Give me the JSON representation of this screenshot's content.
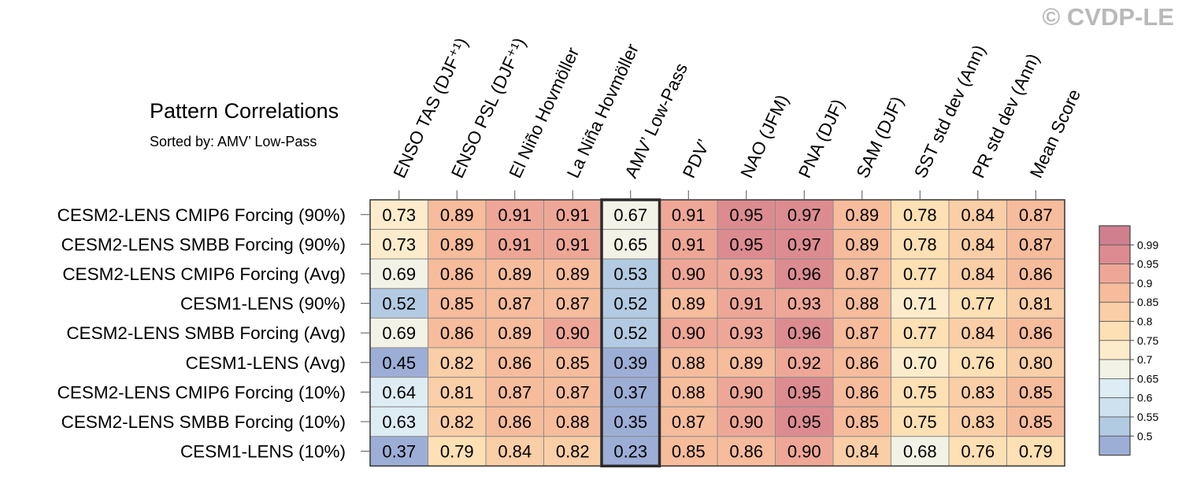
{
  "watermark": "© CVDP-LE",
  "chart_data": {
    "type": "heatmap",
    "title": "Pattern Correlations",
    "subtitle": "Sorted by: AMV’ Low-Pass",
    "columns": [
      "ENSO TAS (DJF⁺¹)",
      "ENSO PSL (DJF⁺¹)",
      "El Niño Hovmöller",
      "La Niña Hovmöller",
      "AMV’ Low-Pass",
      "PDV’",
      "NAO (JFM)",
      "PNA (DJF)",
      "SAM (DJF)",
      "SST std dev (Ann)",
      "PR std dev (Ann)",
      "Mean Score"
    ],
    "highlighted_column": "AMV’ Low-Pass",
    "rows": [
      "CESM2-LENS CMIP6 Forcing (90%)",
      "CESM2-LENS SMBB Forcing (90%)",
      "CESM2-LENS CMIP6 Forcing (Avg)",
      "CESM1-LENS (90%)",
      "CESM2-LENS SMBB Forcing (Avg)",
      "CESM1-LENS (Avg)",
      "CESM2-LENS CMIP6 Forcing (10%)",
      "CESM2-LENS SMBB Forcing (10%)",
      "CESM1-LENS (10%)"
    ],
    "values": [
      [
        "0.73",
        "0.89",
        "0.91",
        "0.91",
        "0.67",
        "0.91",
        "0.95",
        "0.97",
        "0.89",
        "0.78",
        "0.84",
        "0.87"
      ],
      [
        "0.73",
        "0.89",
        "0.91",
        "0.91",
        "0.65",
        "0.91",
        "0.95",
        "0.97",
        "0.89",
        "0.78",
        "0.84",
        "0.87"
      ],
      [
        "0.69",
        "0.86",
        "0.89",
        "0.89",
        "0.53",
        "0.90",
        "0.93",
        "0.96",
        "0.87",
        "0.77",
        "0.84",
        "0.86"
      ],
      [
        "0.52",
        "0.85",
        "0.87",
        "0.87",
        "0.52",
        "0.89",
        "0.91",
        "0.93",
        "0.88",
        "0.71",
        "0.77",
        "0.81"
      ],
      [
        "0.69",
        "0.86",
        "0.89",
        "0.90",
        "0.52",
        "0.90",
        "0.93",
        "0.96",
        "0.87",
        "0.77",
        "0.84",
        "0.86"
      ],
      [
        "0.45",
        "0.82",
        "0.86",
        "0.85",
        "0.39",
        "0.88",
        "0.89",
        "0.92",
        "0.86",
        "0.70",
        "0.76",
        "0.80"
      ],
      [
        "0.64",
        "0.81",
        "0.87",
        "0.87",
        "0.37",
        "0.88",
        "0.90",
        "0.95",
        "0.86",
        "0.75",
        "0.83",
        "0.85"
      ],
      [
        "0.63",
        "0.82",
        "0.86",
        "0.88",
        "0.35",
        "0.87",
        "0.90",
        "0.95",
        "0.85",
        "0.75",
        "0.83",
        "0.85"
      ],
      [
        "0.37",
        "0.79",
        "0.84",
        "0.82",
        "0.23",
        "0.85",
        "0.86",
        "0.90",
        "0.84",
        "0.68",
        "0.76",
        "0.79"
      ]
    ],
    "colorbar": {
      "tick_labels": [
        "0.99",
        "0.95",
        "0.9",
        "0.85",
        "0.8",
        "0.75",
        "0.7",
        "0.65",
        "0.6",
        "0.55",
        "0.5"
      ],
      "bins": [
        {
          "upper": 1.0,
          "color": "#d07f8f"
        },
        {
          "upper": 0.99,
          "color": "#dc8c91"
        },
        {
          "upper": 0.95,
          "color": "#eea797"
        },
        {
          "upper": 0.9,
          "color": "#f6bc9b"
        },
        {
          "upper": 0.85,
          "color": "#facea6"
        },
        {
          "upper": 0.8,
          "color": "#fde0b4"
        },
        {
          "upper": 0.75,
          "color": "#fdeccb"
        },
        {
          "upper": 0.7,
          "color": "#f3f2e6"
        },
        {
          "upper": 0.65,
          "color": "#deecf3"
        },
        {
          "upper": 0.6,
          "color": "#cde2ee"
        },
        {
          "upper": 0.55,
          "color": "#b3cbe2"
        },
        {
          "upper": 0.5,
          "color": "#9daed6"
        }
      ]
    }
  }
}
